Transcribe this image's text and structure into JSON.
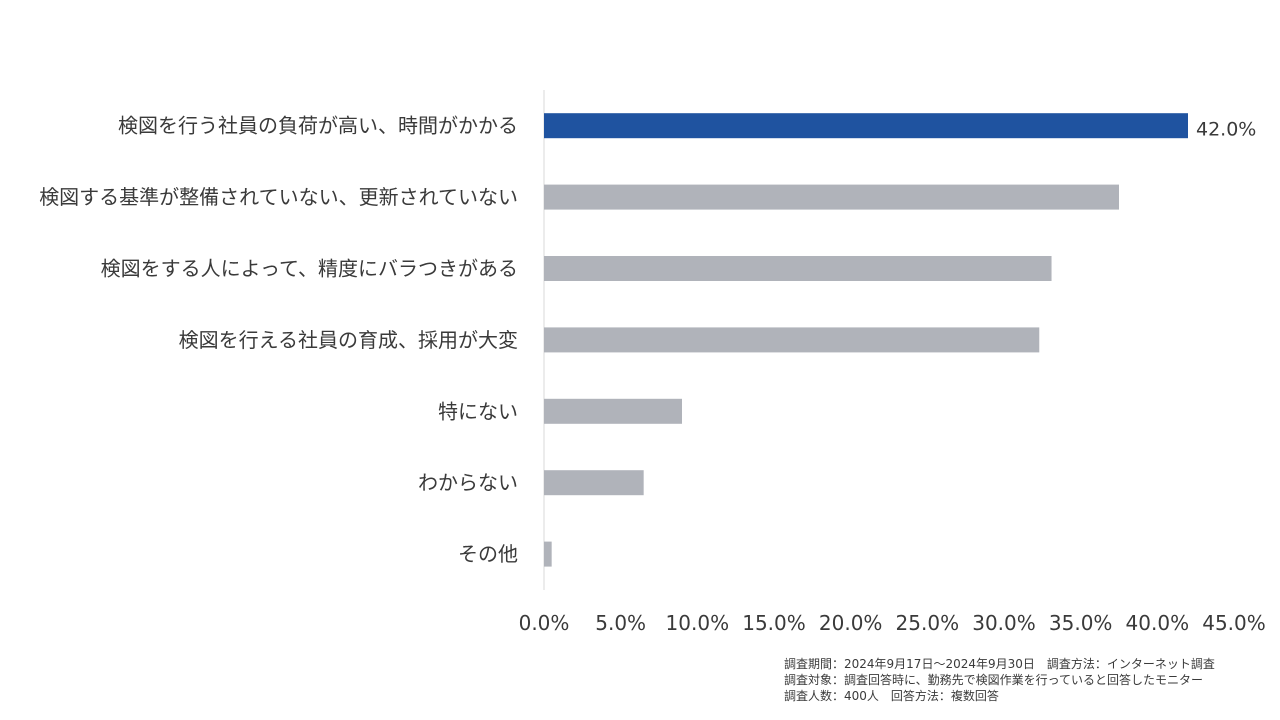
{
  "chart_data": {
    "type": "bar",
    "orientation": "horizontal",
    "categories": [
      "検図を行う社員の負荷が高い、時間がかかる",
      "検図する基準が整備されていない、更新されていない",
      "検図をする人によって、精度にバラつきがある",
      "検図を行える社員の育成、採用が大変",
      "特にない",
      "わからない",
      "その他"
    ],
    "values": [
      42.0,
      37.5,
      33.1,
      32.3,
      9.0,
      6.5,
      0.5
    ],
    "highlight_index": 0,
    "data_labels": [
      "42.0%",
      "",
      "",
      "",
      "",
      "",
      ""
    ],
    "xlim": [
      0,
      45
    ],
    "ticks": [
      "0.0%",
      "5.0%",
      "10.0%",
      "15.0%",
      "20.0%",
      "25.0%",
      "30.0%",
      "35.0%",
      "40.0%",
      "45.0%"
    ],
    "grid": false,
    "title": "",
    "xlabel": "",
    "ylabel": ""
  },
  "colors": {
    "highlight": "#1f53a0",
    "bar": "#b0b3ba",
    "axis": "#d9d9d9",
    "text": "#3a3a3a"
  },
  "notes": {
    "line1": "調査期間：2024年9月17日〜2024年9月30日　調査方法：インターネット調査",
    "line2": "調査対象：調査回答時に、勤務先で検図作業を行っていると回答したモニター",
    "line3": "調査人数：400人　回答方法：複数回答"
  }
}
